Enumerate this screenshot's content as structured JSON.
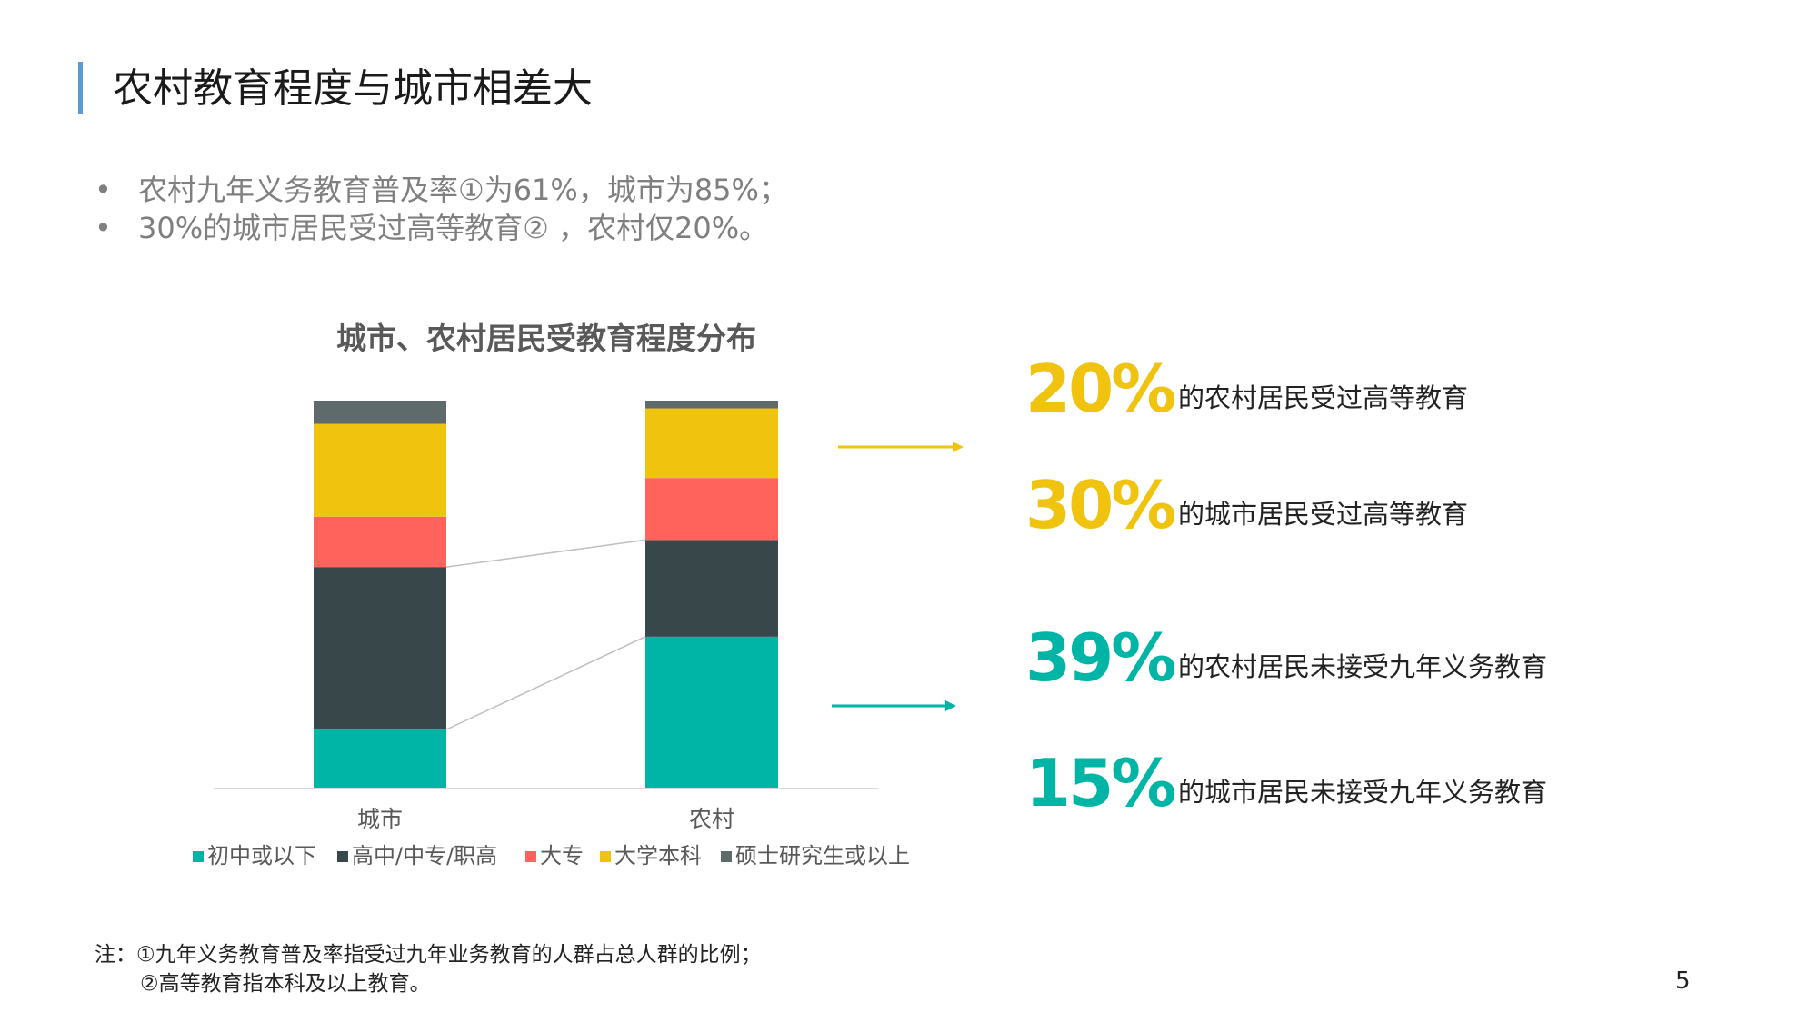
{
  "slide": {
    "title": "农村教育程度与城市相差大",
    "bullets": [
      {
        "symbol": "•",
        "text": "农村九年义务教育普及率①为61%，城市为85%；"
      },
      {
        "symbol": "•",
        "text": "30%的城市居民受过高等教育② ，农村仅20%。"
      }
    ],
    "stats": [
      {
        "value": "20%",
        "text": "的农村居民受过高等教育",
        "color": "#f0c30f"
      },
      {
        "value": "30%",
        "text": "的城市居民受过高等教育",
        "color": "#f0c30f"
      },
      {
        "value": "39%",
        "text": "的农村居民未接受九年义务教育",
        "color": "#00b5a5"
      },
      {
        "value": "15%",
        "text": "的城市居民未接受九年义务教育",
        "color": "#00b5a5"
      }
    ],
    "arrows": {
      "higher_color": "#f0c30f",
      "compulsory_color": "#00b5a5"
    },
    "note": {
      "line1": "注：①九年义务教育普及率指受过九年业务教育的人群占总人群的比例；",
      "line2": "②高等教育指本科及以上教育。"
    },
    "page_number": "5",
    "accent_color": "#5b9bd5"
  },
  "chart_data": {
    "type": "bar",
    "stacked": true,
    "normalized_percent": true,
    "title": "城市、农村居民受教育程度分布",
    "categories": [
      "城市",
      "农村"
    ],
    "series": [
      {
        "name": "初中或以下",
        "color": "#00b5a5",
        "values": [
          15,
          39
        ]
      },
      {
        "name": "高中/中专/职高",
        "color": "#37474a",
        "values": [
          42,
          25
        ]
      },
      {
        "name": "大专",
        "color": "#ff635c",
        "values": [
          13,
          16
        ]
      },
      {
        "name": "大学本科",
        "color": "#f0c30f",
        "values": [
          24,
          18
        ]
      },
      {
        "name": "硕士研究生或以上",
        "color": "#5f6b6b",
        "values": [
          6,
          2
        ]
      }
    ],
    "ylim": [
      0,
      100
    ],
    "legend_position": "bottom",
    "grid": false
  }
}
